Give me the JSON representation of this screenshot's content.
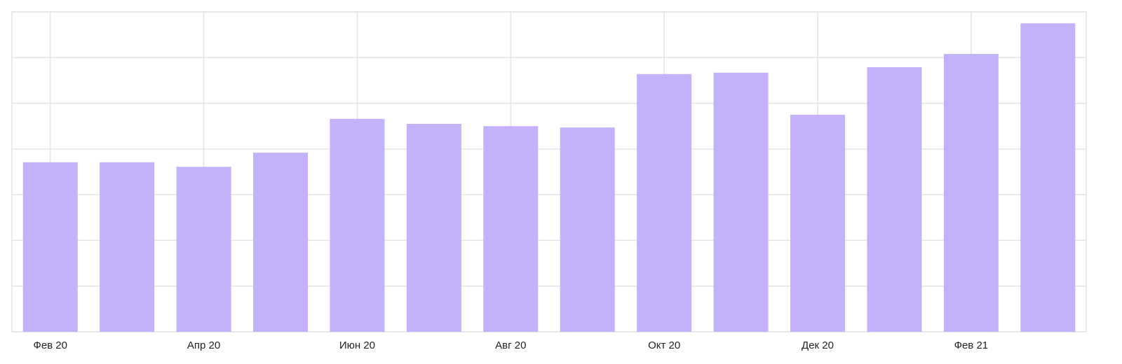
{
  "chart_data": {
    "type": "bar",
    "categories": [
      "Фев 20",
      null,
      "Апр 20",
      null,
      "Июн 20",
      null,
      "Авг 20",
      null,
      "Окт 20",
      null,
      "Дек 20",
      null,
      "Фев 21",
      null
    ],
    "values": [
      3.71,
      3.71,
      3.61,
      3.92,
      4.66,
      4.55,
      4.5,
      4.47,
      5.64,
      5.67,
      4.75,
      5.79,
      6.08,
      6.75
    ],
    "color": "#c3b1f9",
    "ylim": [
      0,
      7
    ],
    "yticks": [
      0,
      1,
      2,
      3,
      4,
      5,
      6,
      7
    ],
    "grid": true
  }
}
